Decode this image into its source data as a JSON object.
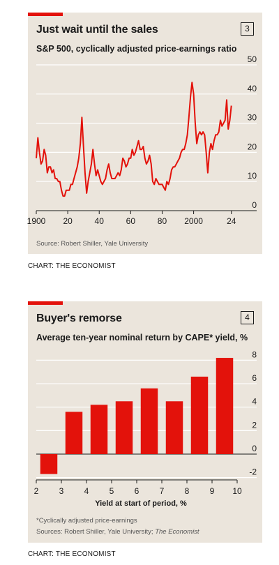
{
  "chart1": {
    "number": "3",
    "credit": "CHART: THE ECONOMIST",
    "chart_data": {
      "type": "line",
      "title": "Just wait until the sales",
      "subtitle": "S&P 500, cyclically adjusted price-earnings ratio",
      "source": "Source: Robert Shiller, Yale University",
      "ylim": [
        0,
        50
      ],
      "yticks": [
        0,
        10,
        20,
        30,
        40,
        50
      ],
      "xlim": [
        1900,
        2025
      ],
      "xtick_values": [
        1900,
        1920,
        1940,
        1960,
        1980,
        2000,
        2024
      ],
      "xtick_labels": [
        "1900",
        "20",
        "40",
        "60",
        "80",
        "2000",
        "24"
      ],
      "grid": true,
      "series": [
        {
          "color": "#e3120b",
          "x": [
            1900,
            1901,
            1902,
            1903,
            1904,
            1905,
            1906,
            1907,
            1908,
            1909,
            1910,
            1911,
            1912,
            1913,
            1914,
            1915,
            1916,
            1917,
            1918,
            1919,
            1920,
            1921,
            1922,
            1923,
            1924,
            1925,
            1926,
            1927,
            1928,
            1929,
            1930,
            1931,
            1932,
            1933,
            1934,
            1935,
            1936,
            1937,
            1938,
            1939,
            1940,
            1941,
            1942,
            1943,
            1944,
            1945,
            1946,
            1947,
            1948,
            1949,
            1950,
            1951,
            1952,
            1953,
            1954,
            1955,
            1956,
            1957,
            1958,
            1959,
            1960,
            1961,
            1962,
            1963,
            1964,
            1965,
            1966,
            1967,
            1968,
            1969,
            1970,
            1971,
            1972,
            1973,
            1974,
            1975,
            1976,
            1977,
            1978,
            1979,
            1980,
            1981,
            1982,
            1983,
            1984,
            1985,
            1986,
            1987,
            1988,
            1989,
            1990,
            1991,
            1992,
            1993,
            1994,
            1995,
            1996,
            1997,
            1998,
            1999,
            2000,
            2001,
            2002,
            2003,
            2004,
            2005,
            2006,
            2007,
            2008,
            2009,
            2010,
            2011,
            2012,
            2013,
            2014,
            2015,
            2016,
            2017,
            2018,
            2019,
            2020,
            2021,
            2022,
            2023,
            2024
          ],
          "y": [
            18,
            25,
            20,
            16,
            17,
            21,
            19,
            13,
            15,
            15,
            13,
            14,
            11,
            11,
            10,
            10,
            7,
            5,
            5,
            7,
            7,
            7,
            9,
            9,
            11,
            13,
            15,
            18,
            23,
            32,
            22,
            13,
            6,
            10,
            13,
            16,
            21,
            16,
            12,
            14,
            12,
            10,
            9,
            10,
            11,
            14,
            16,
            13,
            11,
            11,
            11,
            12,
            13,
            12,
            14,
            18,
            17,
            15,
            16,
            18,
            18,
            21,
            19,
            20,
            22,
            24,
            21,
            21,
            22,
            18,
            16,
            17,
            19,
            16,
            10,
            9,
            11,
            10,
            9,
            9,
            9,
            8,
            7,
            10,
            9,
            11,
            14,
            15,
            15,
            16,
            17,
            18,
            20,
            21,
            21,
            23,
            26,
            32,
            39,
            44,
            40,
            30,
            23,
            26,
            27,
            26,
            27,
            26,
            20,
            13,
            20,
            23,
            21,
            24,
            26,
            26,
            27,
            31,
            29,
            30,
            31,
            38,
            28,
            31,
            36
          ]
        }
      ]
    }
  },
  "chart2": {
    "number": "4",
    "footnote": "*Cyclically adjusted price-earnings",
    "sources_prefix": "Sources: Robert Shiller, Yale University; ",
    "sources_italic": "The Economist",
    "credit": "CHART: THE ECONOMIST",
    "chart_data": {
      "type": "bar",
      "title": "Buyer's remorse",
      "subtitle": "Average ten-year nominal return by CAPE* yield, %",
      "xlabel": "Yield at start of period, %",
      "ylabel": "",
      "ylim": [
        -2.2,
        8.5
      ],
      "yticks": [
        -2,
        0,
        2,
        4,
        6,
        8
      ],
      "ytick_labels": [
        "-2",
        "0",
        "2",
        "4",
        "6",
        "8"
      ],
      "xlim": [
        2,
        10
      ],
      "xticks": [
        2,
        3,
        4,
        5,
        6,
        7,
        8,
        9,
        10
      ],
      "grid": true,
      "bar_color": "#e3120b",
      "bars": [
        {
          "x": 2.5,
          "value": -1.7
        },
        {
          "x": 3.5,
          "value": 3.6
        },
        {
          "x": 4.5,
          "value": 4.2
        },
        {
          "x": 5.5,
          "value": 4.5
        },
        {
          "x": 6.5,
          "value": 5.6
        },
        {
          "x": 7.5,
          "value": 4.5
        },
        {
          "x": 8.5,
          "value": 6.6
        },
        {
          "x": 9.5,
          "value": 8.2
        }
      ]
    }
  }
}
